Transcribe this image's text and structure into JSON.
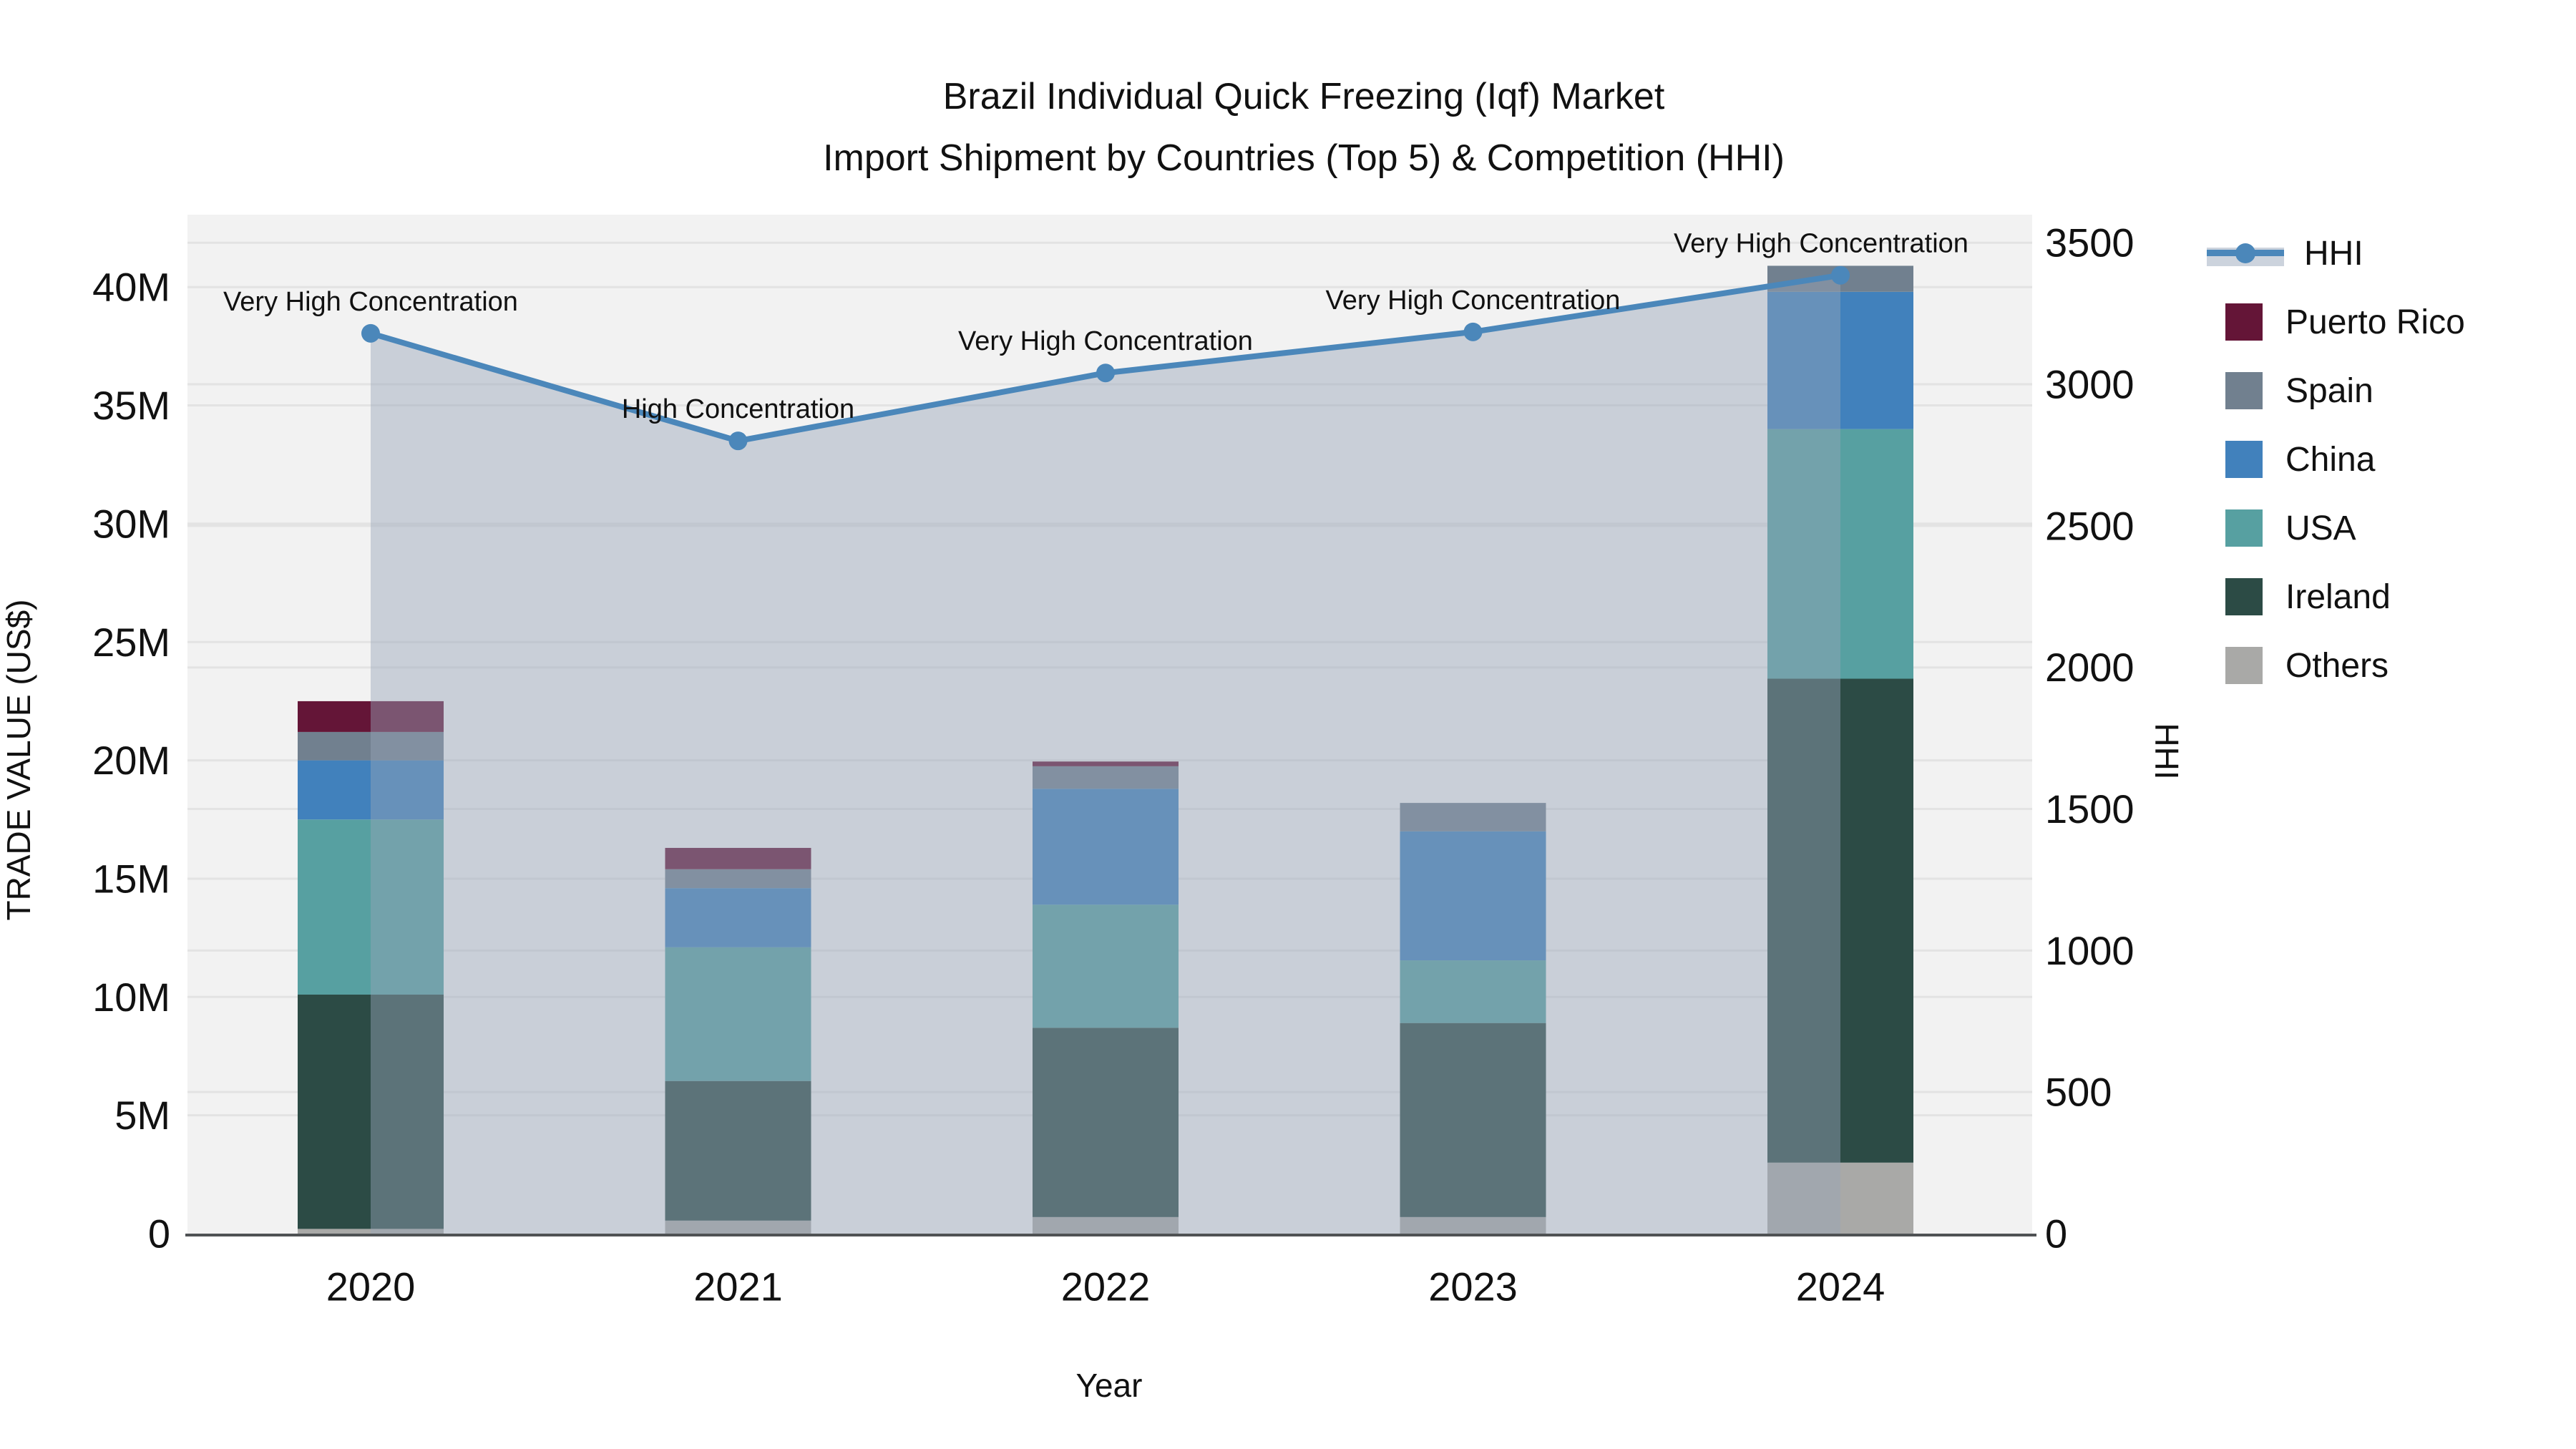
{
  "title": {
    "line1": "Brazil Individual Quick Freezing (Iqf) Market",
    "line2": "Import Shipment by Countries (Top 5) & Competition (HHI)"
  },
  "axes": {
    "left": {
      "title": "TRADE VALUE (US$)",
      "ticks": [
        "0",
        "5M",
        "10M",
        "15M",
        "20M",
        "25M",
        "30M",
        "35M",
        "40M"
      ],
      "tick_values_million": [
        0,
        5,
        10,
        15,
        20,
        25,
        30,
        35,
        40
      ]
    },
    "right": {
      "title": "HHI",
      "ticks": [
        "0",
        "500",
        "1000",
        "1500",
        "2000",
        "2500",
        "3000",
        "3500"
      ],
      "tick_values": [
        0,
        500,
        1000,
        1500,
        2000,
        2500,
        3000,
        3500
      ]
    },
    "x": {
      "title": "Year",
      "categories": [
        "2020",
        "2021",
        "2022",
        "2023",
        "2024"
      ]
    }
  },
  "legend": {
    "items": [
      {
        "label": "HHI",
        "type": "line",
        "swatch_color": "#4b87ba"
      },
      {
        "label": "Puerto Rico",
        "type": "square",
        "swatch_color": "#641537"
      },
      {
        "label": "Spain",
        "type": "square",
        "swatch_color": "#71808f"
      },
      {
        "label": "China",
        "type": "square",
        "swatch_color": "#4181bc"
      },
      {
        "label": "USA",
        "type": "square",
        "swatch_color": "#57a0a1"
      },
      {
        "label": "Ireland",
        "type": "square",
        "swatch_color": "#2c4b45"
      },
      {
        "label": "Others",
        "type": "square",
        "swatch_color": "#a9a9a7"
      }
    ]
  },
  "chart_data": {
    "type": "bar+line",
    "title": "Brazil Individual Quick Freezing (Iqf) Market Import Shipment by Countries (Top 5) & Competition (HHI)",
    "categories": [
      "2020",
      "2021",
      "2022",
      "2023",
      "2024"
    ],
    "bar_unit": "million US$",
    "stack_order_bottom_to_top": [
      "Others",
      "Ireland",
      "USA",
      "China",
      "Spain",
      "Puerto Rico"
    ],
    "series": [
      {
        "name": "Others",
        "color": "#a9a9a7",
        "values": [
          0.2,
          0.55,
          0.7,
          0.7,
          3.0
        ]
      },
      {
        "name": "Ireland",
        "color": "#2c4b45",
        "values": [
          9.9,
          5.9,
          8.0,
          8.2,
          20.45
        ]
      },
      {
        "name": "USA",
        "color": "#57a0a1",
        "values": [
          7.4,
          5.65,
          5.2,
          2.65,
          10.55
        ]
      },
      {
        "name": "China",
        "color": "#4181bc",
        "values": [
          2.5,
          2.5,
          4.9,
          5.45,
          5.8
        ]
      },
      {
        "name": "Spain",
        "color": "#71808f",
        "values": [
          1.2,
          0.8,
          0.95,
          1.2,
          1.1
        ]
      },
      {
        "name": "Puerto Rico",
        "color": "#641537",
        "values": [
          1.3,
          0.9,
          0.2,
          0,
          0
        ]
      }
    ],
    "bar_totals_million": [
      22.5,
      16.3,
      19.95,
      18.2,
      40.9
    ],
    "line": {
      "name": "HHI",
      "values": [
        3180,
        2800,
        3040,
        3185,
        3385
      ],
      "fill": "tozeroy",
      "color": "#4b87ba"
    },
    "annotations": [
      "Very High Concentration",
      "High Concentration",
      "Very High Concentration",
      "Very High Concentration",
      "Very High Concentration"
    ],
    "xlabel": "Year",
    "ylabel_left": "TRADE VALUE (US$)",
    "ylabel_right": "HHI",
    "ylim_left_million": [
      0,
      42
    ],
    "ylim_right": [
      0,
      3500
    ],
    "grid": true,
    "legend_position": "right"
  },
  "colors": {
    "plot_bg": "#f2f2f2",
    "grid": "#e3e3e3",
    "axis_line": "#4f5254",
    "hhi_line": "#4b87ba",
    "area_fill": "#97a4b8",
    "area_opacity": 0.45,
    "text": "#111111"
  }
}
